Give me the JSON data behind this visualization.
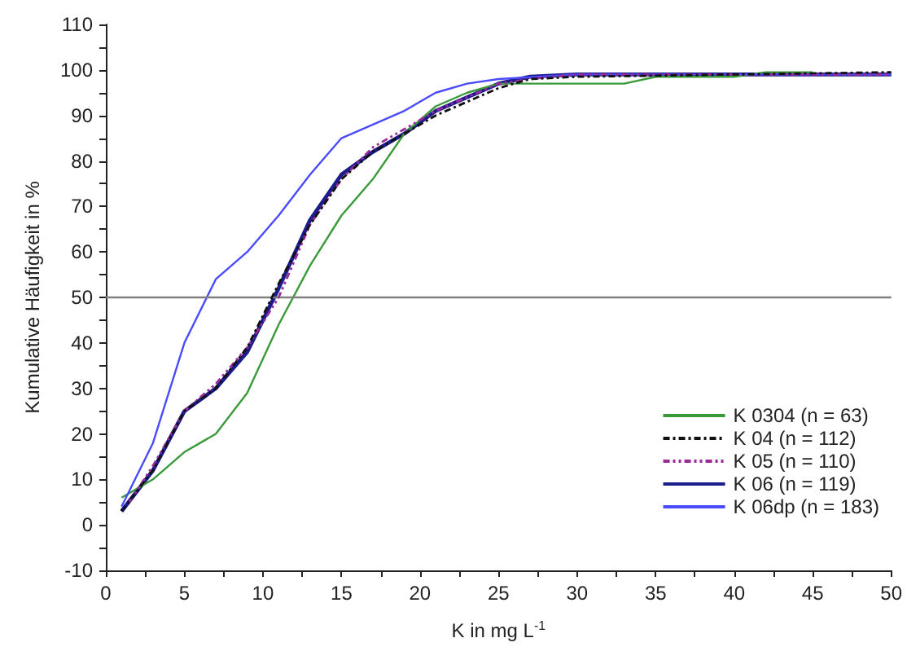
{
  "chart_data": {
    "type": "line",
    "xlabel": "K in mg L$^{-1}$",
    "ylabel": "Kumulative Häufigkeit in %",
    "xlim": [
      0,
      50
    ],
    "ylim": [
      -10,
      110
    ],
    "xticks": [
      0,
      {
        "value": 2.5,
        "label": null
      },
      5,
      {
        "value": 7.5,
        "label": null
      },
      10,
      {
        "value": 12.5,
        "label": null
      },
      15,
      {
        "value": 17.5,
        "label": null
      },
      20,
      {
        "value": 22.5,
        "label": null
      },
      25,
      {
        "value": 27.5,
        "label": null
      },
      30,
      {
        "value": 32.5,
        "label": null
      },
      35,
      {
        "value": 37.5,
        "label": null
      },
      40,
      {
        "value": 42.5,
        "label": null
      },
      45,
      {
        "value": 47.5,
        "label": null
      },
      50
    ],
    "yticks": [
      -10,
      {
        "value": -5,
        "label": null
      },
      0,
      {
        "value": 5,
        "label": null
      },
      10,
      {
        "value": 15,
        "label": null
      },
      20,
      {
        "value": 25,
        "label": null
      },
      30,
      {
        "value": 35,
        "label": null
      },
      40,
      {
        "value": 45,
        "label": null
      },
      50,
      {
        "value": 55,
        "label": null
      },
      60,
      {
        "value": 65,
        "label": null
      },
      70,
      {
        "value": 75,
        "label": null
      },
      80,
      {
        "value": 85,
        "label": null
      },
      90,
      {
        "value": 95,
        "label": null
      },
      100,
      {
        "value": 105,
        "label": null
      },
      110
    ],
    "grid": false,
    "legend": "bottom right",
    "marker": "none",
    "ref_lines": [
      {
        "axis": "y",
        "value": 50,
        "label": null,
        "color": "#808080",
        "line_style": "solid"
      }
    ],
    "series": [
      {
        "name": "K 0304 (n = 63)",
        "color": "#3a9a3a",
        "line_style": "solid",
        "x": [
          1,
          3,
          5,
          7,
          9,
          11,
          13,
          15,
          17,
          19,
          21,
          23,
          25,
          27,
          33,
          35,
          40,
          42,
          45
        ],
        "values": [
          6,
          10,
          16,
          20,
          29,
          44,
          57,
          68,
          76,
          86,
          92,
          95,
          97,
          97,
          97,
          98.5,
          98.5,
          99.5,
          99.5
        ]
      },
      {
        "name": "K 04 (n = 112)",
        "color": "#111111",
        "line_style": "dashdot",
        "x": [
          1,
          3,
          5,
          7,
          9,
          11,
          13,
          15,
          17,
          19,
          21,
          23,
          25,
          27,
          30,
          50
        ],
        "values": [
          3,
          12,
          25,
          30,
          39,
          53,
          66,
          76,
          82,
          86,
          90,
          93,
          96,
          98,
          98.5,
          99.5
        ]
      },
      {
        "name": "K 05 (n = 110)",
        "color": "#9a2a9a",
        "line_style": "dashdotdot",
        "x": [
          1.5,
          3,
          5,
          7,
          9,
          11,
          13,
          15,
          17,
          19,
          21,
          23,
          25,
          27,
          30,
          50
        ],
        "values": [
          5,
          13,
          25,
          31,
          39,
          50,
          66,
          76,
          83,
          87,
          91,
          94,
          97,
          98,
          99,
          99
        ]
      },
      {
        "name": "K 06 (n = 119)",
        "color": "#1c1c8c",
        "line_style": "solid",
        "x": [
          1,
          3,
          5,
          7,
          9,
          11,
          13,
          15,
          17,
          19,
          21,
          23,
          25,
          27,
          30,
          50
        ],
        "values": [
          3,
          12,
          25,
          30,
          38,
          52,
          67,
          77,
          82,
          86,
          91,
          94,
          97,
          98.5,
          99,
          99
        ]
      },
      {
        "name": "K 06dp (n = 183)",
        "color": "#4a4aff",
        "line_style": "solid",
        "x": [
          1,
          3,
          5,
          7,
          9,
          11,
          13,
          15,
          17,
          19,
          21,
          23,
          25,
          30,
          50
        ],
        "values": [
          4,
          18,
          40,
          54,
          60,
          68,
          77,
          85,
          88,
          91,
          95,
          97,
          98,
          99,
          99
        ]
      }
    ]
  }
}
